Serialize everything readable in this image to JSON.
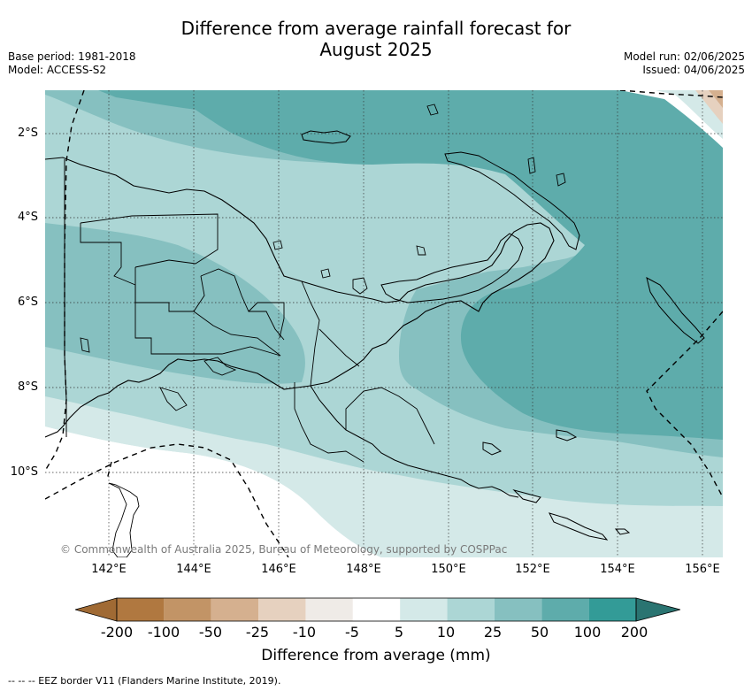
{
  "title": "Difference from average rainfall forecast for August 2025",
  "title_lines": [
    "Difference from average rainfall forecast for",
    "August 2025"
  ],
  "base_period": "Base period: 1981-2018",
  "model": "Model: ACCESS-S2",
  "model_run": "Model run: 02/06/2025",
  "issued": "Issued: 04/06/2025",
  "lat_labels": [
    "2°S",
    "4°S",
    "6°S",
    "8°S",
    "10°S"
  ],
  "lon_labels": [
    "142°E",
    "144°E",
    "146°E",
    "148°E",
    "150°E",
    "152°E",
    "154°E",
    "156°E"
  ],
  "credit": "© Commonwealth of Australia 2025, Bureau of Meteorology, supported by COSPPac",
  "colorbar": {
    "title": "Difference from average (mm)",
    "labels": [
      "-200",
      "-100",
      "-50",
      "-25",
      "-10",
      "-5",
      "5",
      "10",
      "25",
      "50",
      "100",
      "200"
    ],
    "colors": [
      "#a06a34",
      "#b07840",
      "#c29466",
      "#d5b08f",
      "#e6d1bf",
      "#efebe7",
      "#ffffff",
      "#d4e9e8",
      "#acd6d5",
      "#86c0c0",
      "#5eacab",
      "#339b97",
      "#2a7471"
    ]
  },
  "legend_note": "--  --  -- EEZ border V11 (Flanders Marine Institute, 2019)."
}
